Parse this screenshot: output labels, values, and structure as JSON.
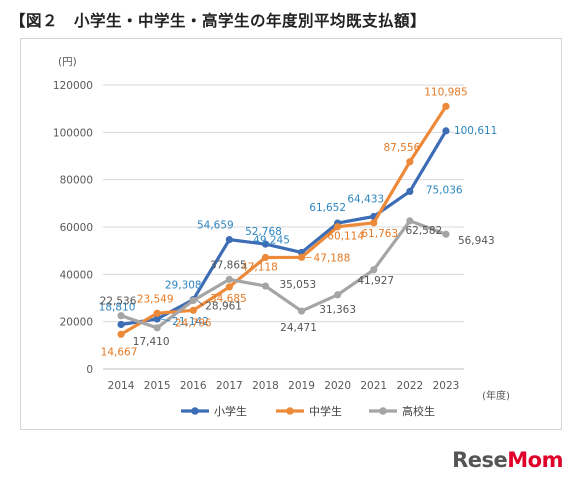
{
  "title": "【図２　小学生・中学生・高学生の年度別平均既支払額】",
  "logo": {
    "part1": "Rese",
    "part2": "Mom"
  },
  "chart_data": {
    "type": "line",
    "title": "【図２　小学生・中学生・高学生の年度別平均既支払額】",
    "ylabel": "(円)",
    "xlabel": "(年度)",
    "ylim": [
      0,
      120000
    ],
    "yticks": [
      0,
      20000,
      40000,
      60000,
      80000,
      100000,
      120000
    ],
    "ytick_labels": [
      "0",
      "20000",
      "40000",
      "60000",
      "80000",
      "100000",
      "120000"
    ],
    "categories": [
      "2014",
      "2015",
      "2016",
      "2017",
      "2018",
      "2019",
      "2020",
      "2021",
      "2022",
      "2023"
    ],
    "grid": "horizontal",
    "legend": "bottom",
    "series": [
      {
        "name": "小学生",
        "color": "#3d6db5",
        "label_color": "#2e86c1",
        "values": [
          18810,
          21142,
          29308,
          54659,
          52768,
          49245,
          61652,
          64433,
          75036,
          100611
        ],
        "labels": [
          "18,810",
          "21,142",
          "29,308",
          "54,659",
          "52,768",
          "49,245",
          "61,652",
          "64,433",
          "75,036",
          "100,611"
        ]
      },
      {
        "name": "中学生",
        "color": "#ed8a3a",
        "label_color": "#e57a25",
        "values": [
          14667,
          23549,
          24796,
          34685,
          47118,
          47188,
          60114,
          61763,
          87556,
          110985
        ],
        "labels": [
          "14,667",
          "23,549",
          "24,796",
          "34,685",
          "47,118",
          "47,188",
          "60,114",
          "61,763",
          "87,556",
          "110,985"
        ]
      },
      {
        "name": "高校生",
        "color": "#a5a5a5",
        "label_color": "#555555",
        "values": [
          22536,
          17410,
          28961,
          37865,
          35053,
          24471,
          31363,
          41927,
          62582,
          56943
        ],
        "labels": [
          "22,536",
          "17,410",
          "28,961",
          "37,865",
          "35,053",
          "24,471",
          "31,363",
          "41,927",
          "62,582",
          "56,943"
        ]
      }
    ]
  }
}
